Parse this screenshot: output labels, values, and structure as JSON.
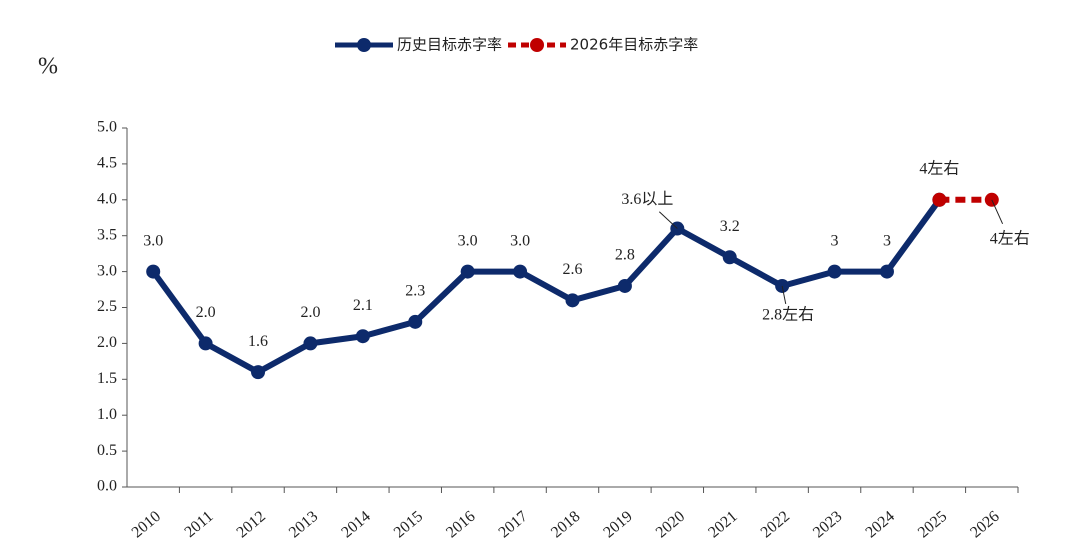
{
  "chart_data": {
    "type": "line",
    "y_label": "%",
    "categories": [
      "2010",
      "2011",
      "2012",
      "2013",
      "2014",
      "2015",
      "2016",
      "2017",
      "2018",
      "2019",
      "2020",
      "2021",
      "2022",
      "2023",
      "2024",
      "2025",
      "2026"
    ],
    "series": [
      {
        "name": "历史目标赤字率",
        "color": "#0d2a6b",
        "style": "solid",
        "values": [
          3.0,
          2.0,
          1.6,
          2.0,
          2.1,
          2.3,
          3.0,
          3.0,
          2.6,
          2.8,
          3.6,
          3.2,
          2.8,
          3,
          3,
          4,
          null
        ],
        "value_labels": [
          "3.0",
          "2.0",
          "1.6",
          "2.0",
          "2.1",
          "2.3",
          "3.0",
          "3.0",
          "2.6",
          "2.8",
          "3.6以上",
          "3.2",
          "2.8左右",
          "3",
          "3",
          "4左右",
          null
        ]
      },
      {
        "name": "2026年目标赤字率",
        "color": "#c00000",
        "style": "dashed",
        "values": [
          null,
          null,
          null,
          null,
          null,
          null,
          null,
          null,
          null,
          null,
          null,
          null,
          null,
          null,
          null,
          4,
          4
        ],
        "value_labels": [
          null,
          null,
          null,
          null,
          null,
          null,
          null,
          null,
          null,
          null,
          null,
          null,
          null,
          null,
          null,
          null,
          "4左右"
        ]
      }
    ],
    "ylim": [
      0,
      5
    ],
    "yticks": [
      {
        "value": 0,
        "label": "0.0"
      },
      0.5,
      {
        "value": 1,
        "label": "1.0"
      },
      1.5,
      {
        "value": 2,
        "label": "2.0"
      },
      2.5,
      {
        "value": 3,
        "label": "3.0"
      },
      3.5,
      {
        "value": 4,
        "label": "4.0"
      },
      4.5,
      {
        "value": 5,
        "label": "5.0"
      }
    ],
    "legend": "top"
  }
}
